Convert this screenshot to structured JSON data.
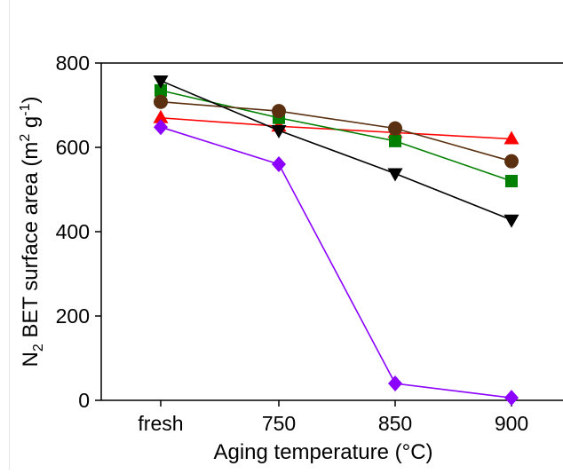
{
  "chart_data": {
    "type": "line",
    "xlabel": "Aging temperature (°C)",
    "ylabel": {
      "main": "N",
      "sub": "2",
      "mid": " BET surface area (m",
      "sup1": "2",
      "mid2": " g",
      "sup2": "-1",
      "end": ")"
    },
    "categories": [
      "fresh",
      "750",
      "850",
      "900"
    ],
    "ylim": [
      0,
      800
    ],
    "yticks": [
      "0",
      "200",
      "400",
      "600",
      "800"
    ],
    "grid": false,
    "legend": "none",
    "series": [
      {
        "color": "#ff0000",
        "marker": "triangle-up",
        "values": [
          670,
          650,
          635,
          620
        ]
      },
      {
        "color": "#008000",
        "marker": "square",
        "values": [
          735,
          670,
          615,
          520
        ]
      },
      {
        "color": "#5a3010",
        "marker": "circle",
        "values": [
          708,
          686,
          645,
          567
        ]
      },
      {
        "color": "#000000",
        "marker": "triangle-down",
        "values": [
          758,
          640,
          538,
          428
        ]
      },
      {
        "color": "#8b00ff",
        "marker": "diamond",
        "values": [
          648,
          560,
          40,
          6
        ]
      }
    ]
  }
}
